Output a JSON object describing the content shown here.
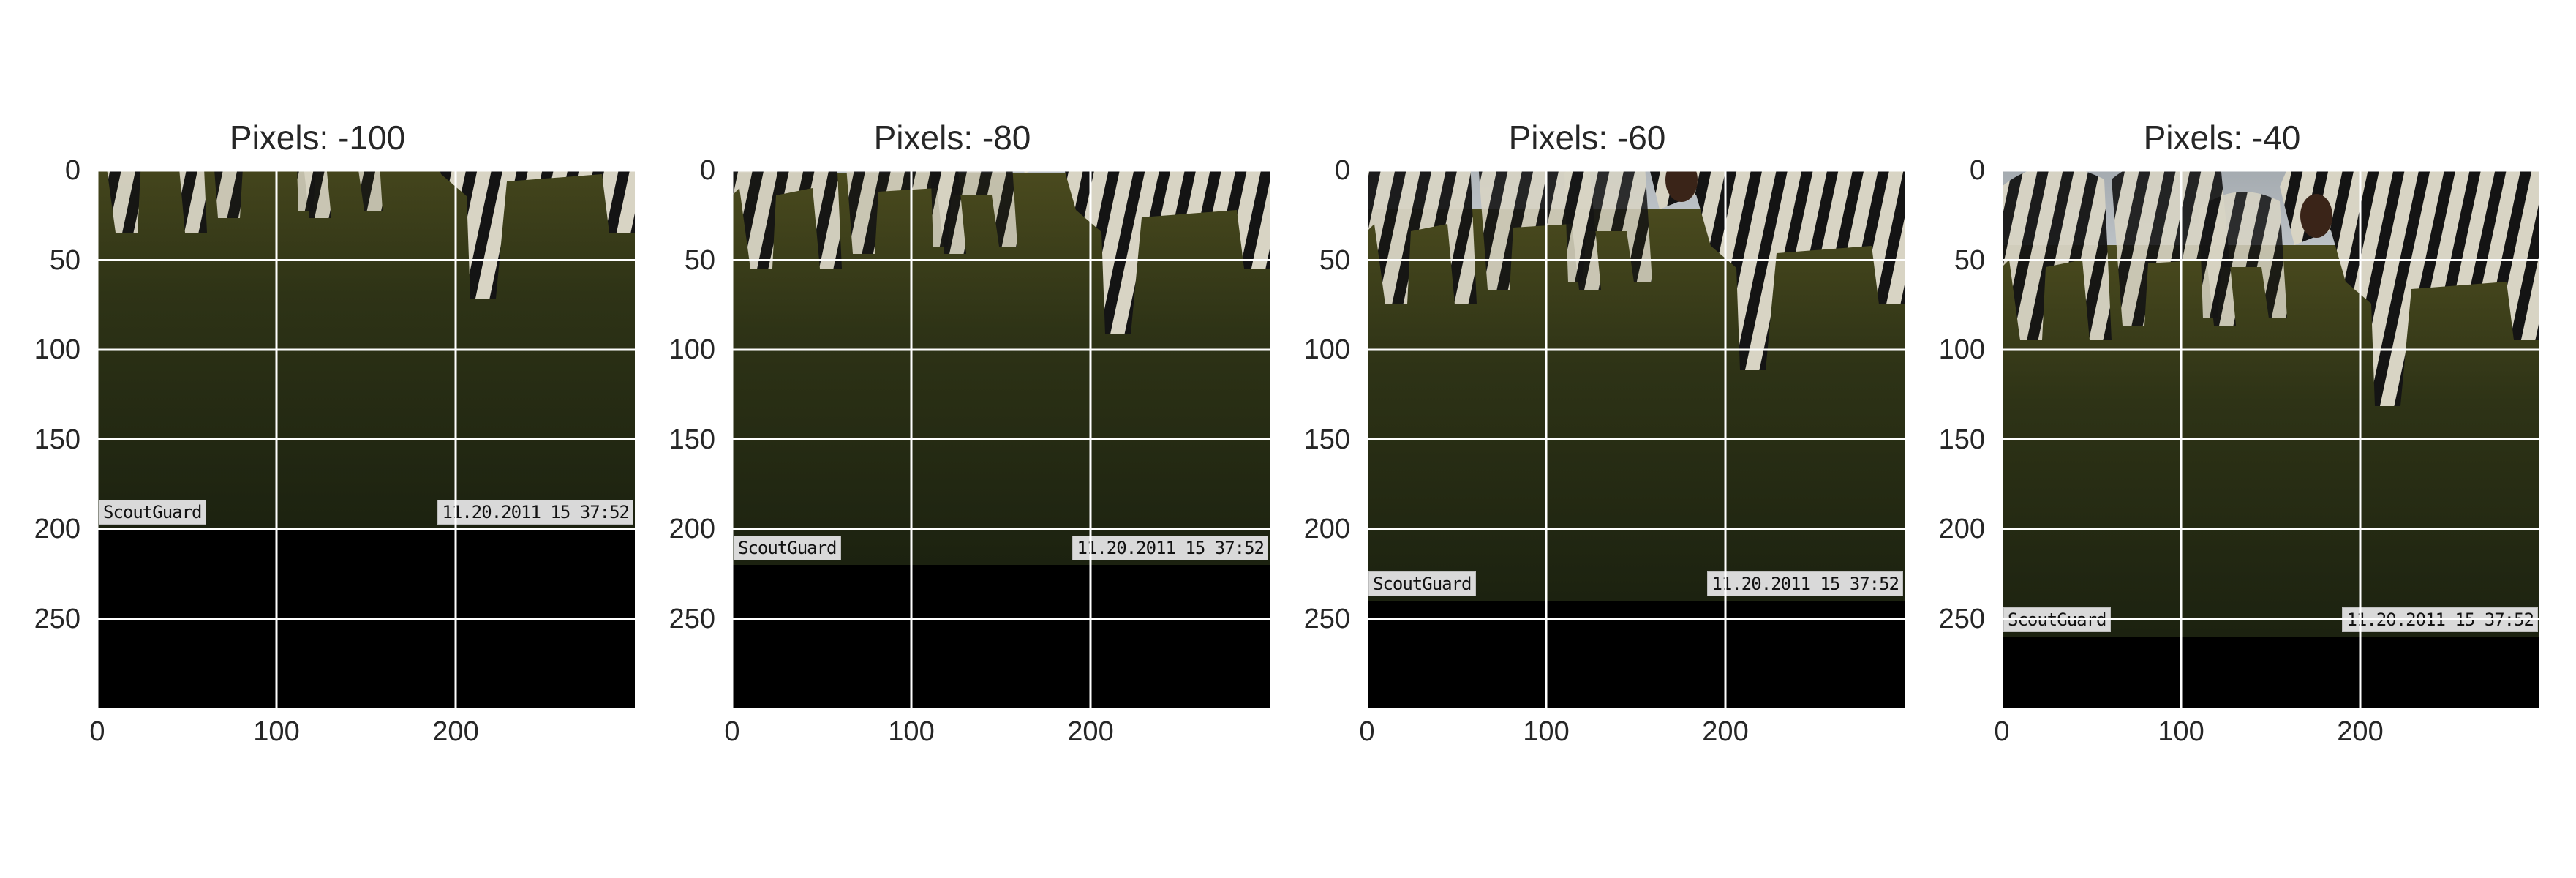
{
  "panels": [
    {
      "title": "Pixels: -100",
      "shift": -100,
      "stamp_left": "ScoutGuard",
      "stamp_right": "11.20.2011 15 37:52"
    },
    {
      "title": "Pixels: -80",
      "shift": -80,
      "stamp_left": "ScoutGuard",
      "stamp_right": "11.20.2011 15 37:52"
    },
    {
      "title": "Pixels: -60",
      "shift": -60,
      "stamp_left": "ScoutGuard",
      "stamp_right": "11.20.2011 15 37:52"
    },
    {
      "title": "Pixels: -40",
      "shift": -40,
      "stamp_left": "ScoutGuard",
      "stamp_right": "11.20.2011 15 37:52"
    }
  ],
  "y_ticks": [
    "0",
    "50",
    "100",
    "150",
    "200",
    "250"
  ],
  "x_ticks": [
    "0",
    "100",
    "200"
  ],
  "image_size": 300,
  "colors": {
    "sky": "#c9ced2",
    "grass": "#2e3316",
    "zebra_light": "#d8d4c4",
    "zebra_dark": "#141414",
    "fill": "#000000",
    "grid": "#ffffff"
  }
}
